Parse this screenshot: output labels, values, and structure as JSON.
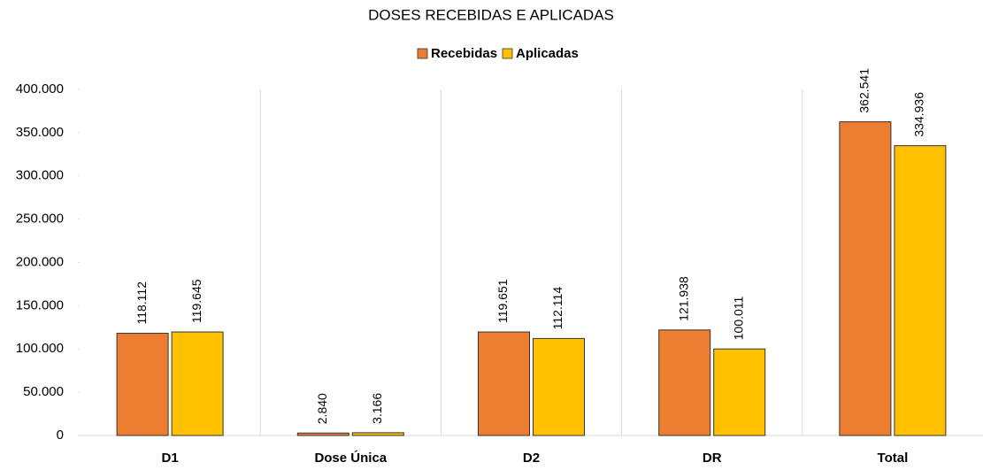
{
  "chart_data": {
    "type": "bar",
    "title": "DOSES RECEBIDAS E APLICADAS",
    "categories": [
      "D1",
      "Dose Única",
      "D2",
      "DR",
      "Total"
    ],
    "series": [
      {
        "name": "Recebidas",
        "color": "#ED7D31",
        "values": [
          118112,
          2840,
          119651,
          121938,
          362541
        ],
        "value_labels": [
          "118.112",
          "2.840",
          "119.651",
          "121.938",
          "362.541"
        ]
      },
      {
        "name": "Aplicadas",
        "color": "#FFC000",
        "values": [
          119645,
          3166,
          112114,
          100011,
          334936
        ],
        "value_labels": [
          "119.645",
          "3.166",
          "112.114",
          "100.011",
          "334.936"
        ]
      }
    ],
    "ylim": [
      0,
      400000
    ],
    "yticks": [
      0,
      {
        "value": 50000,
        "label": "50.000"
      },
      {
        "value": 100000,
        "label": "100.000"
      },
      {
        "value": 150000,
        "label": "150.000"
      },
      {
        "value": 200000,
        "label": "200.000"
      },
      {
        "value": 250000,
        "label": "250.000"
      },
      {
        "value": 300000,
        "label": "300.000"
      },
      {
        "value": 350000,
        "label": "350.000"
      },
      {
        "value": 400000,
        "label": "400.000"
      }
    ],
    "legend": "top"
  }
}
